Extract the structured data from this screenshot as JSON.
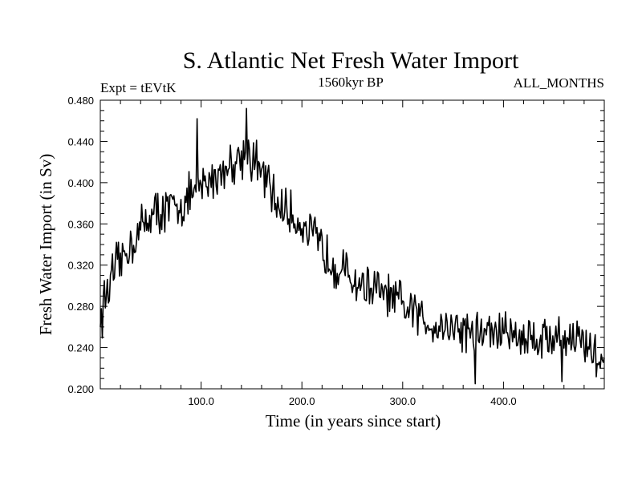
{
  "chart_data": {
    "type": "line",
    "title": "S. Atlantic Net Fresh Water Import",
    "subtitle_left": "Expt = tEVtK",
    "subtitle_center": "1560kyr BP",
    "subtitle_right": "ALL_MONTHS",
    "xlabel": "Time (in years since start)",
    "ylabel": "Fresh Water Import (in Sv)",
    "xlim": [
      0,
      500
    ],
    "ylim": [
      0.2,
      0.48
    ],
    "xticks": [
      100,
      200,
      300,
      400
    ],
    "xtick_labels": [
      "100.0",
      "200.0",
      "300.0",
      "400.0"
    ],
    "yticks": [
      0.2,
      0.24,
      0.28,
      0.32,
      0.36,
      0.4,
      0.44,
      0.48
    ],
    "ytick_labels": [
      "0.200",
      "0.240",
      "0.280",
      "0.320",
      "0.360",
      "0.400",
      "0.440",
      "0.480"
    ],
    "grid": false,
    "series": [
      {
        "name": "Fresh Water Import",
        "color": "#000000",
        "description": "annual series, approximate trend with noise",
        "trend_x": [
          0,
          5,
          15,
          30,
          50,
          75,
          100,
          125,
          145,
          160,
          175,
          200,
          225,
          250,
          275,
          300,
          325,
          350,
          375,
          400,
          425,
          450,
          475,
          500
        ],
        "trend_y": [
          0.265,
          0.29,
          0.315,
          0.34,
          0.37,
          0.375,
          0.395,
          0.415,
          0.43,
          0.41,
          0.38,
          0.36,
          0.33,
          0.305,
          0.295,
          0.28,
          0.265,
          0.26,
          0.255,
          0.255,
          0.25,
          0.25,
          0.25,
          0.225
        ],
        "noise_amplitude": 0.018,
        "notable_points": [
          {
            "x": 0,
            "y": 0.26
          },
          {
            "x": 96,
            "y": 0.462
          },
          {
            "x": 145,
            "y": 0.472
          },
          {
            "x": 372,
            "y": 0.205
          },
          {
            "x": 458,
            "y": 0.207
          },
          {
            "x": 500,
            "y": 0.23
          }
        ]
      }
    ]
  }
}
